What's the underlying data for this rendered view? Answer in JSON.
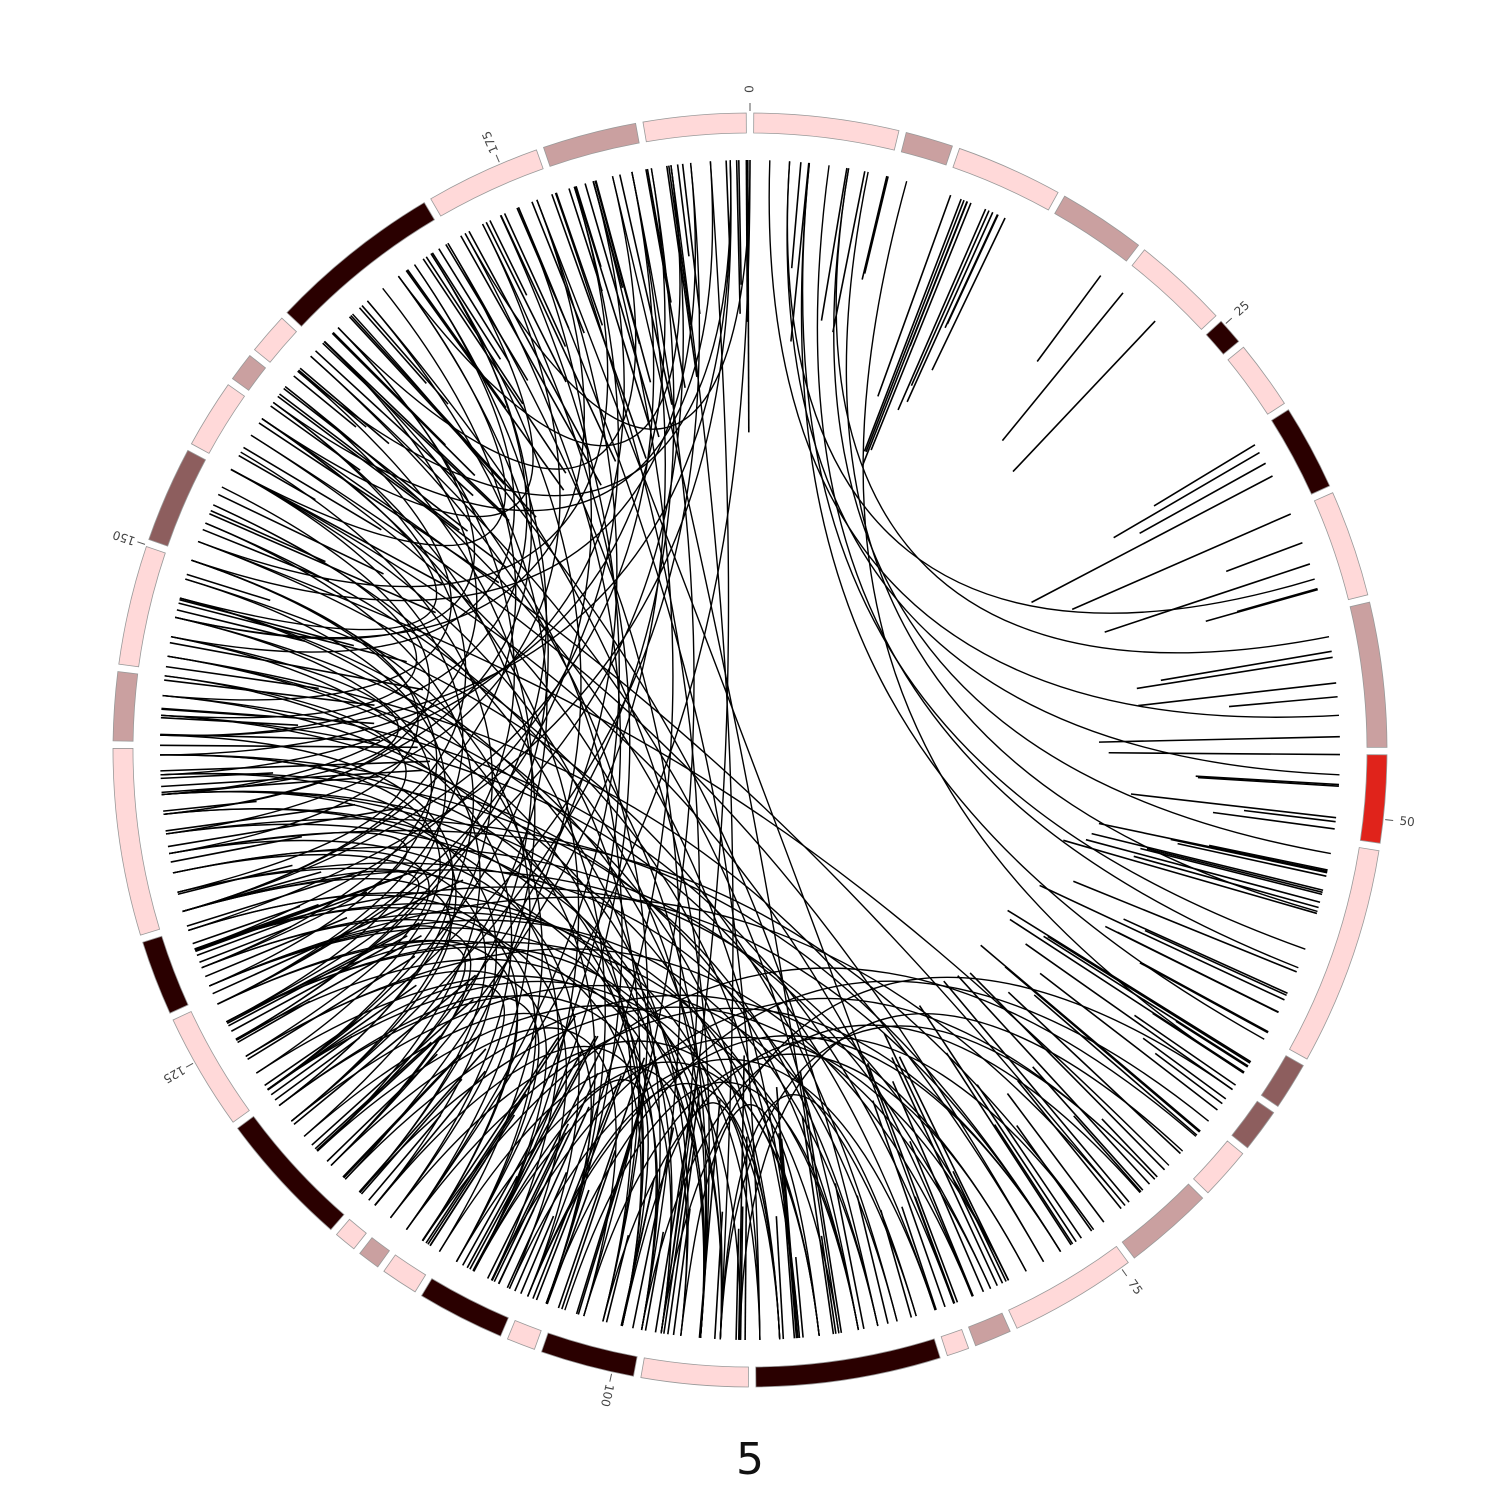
{
  "figure": {
    "caption": "5"
  },
  "axis": {
    "tick_labels": [
      "0",
      "25",
      "50",
      "75",
      "100",
      "125",
      "150",
      "175"
    ]
  },
  "ideogram": {
    "length": 187,
    "border_color": "#999999",
    "bands": [
      {
        "start": 0,
        "end": 7.2,
        "color": "#ffd9d9"
      },
      {
        "start": 7.2,
        "end": 9.8,
        "color": "#caa0a0"
      },
      {
        "start": 9.8,
        "end": 15.2,
        "color": "#ffd9d9"
      },
      {
        "start": 15.2,
        "end": 19.7,
        "color": "#caa0a0"
      },
      {
        "start": 19.7,
        "end": 24.6,
        "color": "#ffd9d9"
      },
      {
        "start": 24.6,
        "end": 26.2,
        "color": "#2a0000"
      },
      {
        "start": 26.2,
        "end": 29.8,
        "color": "#ffd9d9"
      },
      {
        "start": 29.8,
        "end": 34.2,
        "color": "#2a0000"
      },
      {
        "start": 34.2,
        "end": 39.6,
        "color": "#ffd9d9"
      },
      {
        "start": 39.6,
        "end": 46.8,
        "color": "#caa0a0"
      },
      {
        "start": 46.8,
        "end": 51.3,
        "color": "#e0231b"
      },
      {
        "start": 51.3,
        "end": 62.0,
        "color": "#ffd9d9"
      },
      {
        "start": 62.0,
        "end": 64.6,
        "color": "#8d5e5e"
      },
      {
        "start": 64.6,
        "end": 67.0,
        "color": "#8d5e5e"
      },
      {
        "start": 67.0,
        "end": 69.8,
        "color": "#ffd9d9"
      },
      {
        "start": 69.8,
        "end": 74.4,
        "color": "#caa0a0"
      },
      {
        "start": 74.4,
        "end": 80.8,
        "color": "#ffd9d9"
      },
      {
        "start": 80.8,
        "end": 82.9,
        "color": "#caa0a0"
      },
      {
        "start": 82.9,
        "end": 84.3,
        "color": "#ffd9d9"
      },
      {
        "start": 84.3,
        "end": 93.4,
        "color": "#2a0000"
      },
      {
        "start": 93.4,
        "end": 98.8,
        "color": "#ffd9d9"
      },
      {
        "start": 98.8,
        "end": 103.6,
        "color": "#2a0000"
      },
      {
        "start": 103.6,
        "end": 105.3,
        "color": "#ffd9d9"
      },
      {
        "start": 105.3,
        "end": 109.8,
        "color": "#2a0000"
      },
      {
        "start": 109.8,
        "end": 111.9,
        "color": "#ffd9d9"
      },
      {
        "start": 111.9,
        "end": 113.3,
        "color": "#caa0a0"
      },
      {
        "start": 113.3,
        "end": 114.7,
        "color": "#ffd9d9"
      },
      {
        "start": 114.7,
        "end": 121.5,
        "color": "#2a0000"
      },
      {
        "start": 121.5,
        "end": 127.4,
        "color": "#ffd9d9"
      },
      {
        "start": 127.4,
        "end": 131.3,
        "color": "#2a0000"
      },
      {
        "start": 131.3,
        "end": 140.5,
        "color": "#ffd9d9"
      },
      {
        "start": 140.5,
        "end": 144.1,
        "color": "#caa0a0"
      },
      {
        "start": 144.1,
        "end": 150.1,
        "color": "#ffd9d9"
      },
      {
        "start": 150.1,
        "end": 155.0,
        "color": "#8d5e5e"
      },
      {
        "start": 155.0,
        "end": 158.6,
        "color": "#ffd9d9"
      },
      {
        "start": 158.6,
        "end": 160.3,
        "color": "#caa0a0"
      },
      {
        "start": 160.3,
        "end": 162.6,
        "color": "#ffd9d9"
      },
      {
        "start": 162.6,
        "end": 171.2,
        "color": "#2a0000"
      },
      {
        "start": 171.2,
        "end": 177.0,
        "color": "#ffd9d9"
      },
      {
        "start": 177.0,
        "end": 181.8,
        "color": "#caa0a0"
      },
      {
        "start": 181.8,
        "end": 187.0,
        "color": "#ffd9d9"
      }
    ]
  },
  "links": {
    "color": "#000000",
    "pairs": [
      [
        176,
        118
      ],
      [
        130,
        93
      ],
      [
        95,
        71
      ],
      [
        148,
        110
      ],
      [
        145,
        78
      ],
      [
        182,
        120
      ],
      [
        126,
        94
      ],
      [
        101,
        75
      ],
      [
        159,
        115
      ],
      [
        104,
        67
      ],
      [
        131,
        95
      ],
      [
        172,
        109
      ],
      [
        138,
        92
      ],
      [
        142,
        84
      ],
      [
        135,
        105
      ],
      [
        169,
        125
      ],
      [
        98,
        65
      ],
      [
        151,
        91
      ],
      [
        128,
        87
      ],
      [
        158,
        73
      ],
      [
        133,
        99
      ],
      [
        179,
        105
      ],
      [
        150,
        112
      ],
      [
        112,
        77
      ],
      [
        183,
        95
      ],
      [
        167,
        132
      ],
      [
        139,
        120
      ],
      [
        106,
        84
      ],
      [
        162,
        101
      ],
      [
        155,
        82
      ],
      [
        125,
        97
      ],
      [
        186,
        131
      ],
      [
        135,
        75
      ],
      [
        108,
        80
      ],
      [
        147,
        95
      ],
      [
        165,
        87
      ],
      [
        131,
        111
      ],
      [
        177,
        98
      ],
      [
        140,
        100
      ],
      [
        120,
        85
      ],
      [
        156,
        121
      ],
      [
        180,
        89
      ],
      [
        137,
        107
      ],
      [
        94,
        69
      ],
      [
        170,
        116
      ],
      [
        145,
        92
      ],
      [
        129,
        90
      ],
      [
        187,
        112
      ],
      [
        136,
        96
      ],
      [
        153,
        104
      ],
      [
        99,
        72
      ],
      [
        164,
        125
      ],
      [
        144,
        113
      ],
      [
        115,
        81
      ],
      [
        182,
        140
      ],
      [
        127,
        100
      ],
      [
        133,
        86
      ],
      [
        170,
        141
      ],
      [
        157,
        78
      ],
      [
        122,
        92
      ],
      [
        141,
        121
      ],
      [
        184,
        122
      ],
      [
        109,
        90
      ],
      [
        173,
        136
      ],
      [
        152,
        96
      ],
      [
        130,
        109
      ],
      [
        160,
        143
      ],
      [
        134,
        81
      ],
      [
        102,
        79
      ],
      [
        178,
        151
      ],
      [
        146,
        118
      ],
      [
        121,
        98
      ],
      [
        163,
        104
      ],
      [
        138,
        114
      ],
      [
        176,
        83
      ],
      [
        124,
        82
      ],
      [
        149,
        126
      ],
      [
        181,
        132
      ],
      [
        107,
        71
      ],
      [
        154,
        137
      ],
      [
        95,
        85
      ],
      [
        174,
        112
      ],
      [
        148,
        99
      ],
      [
        132,
        120
      ],
      [
        185,
        159
      ],
      [
        128,
        73
      ],
      [
        166,
        96
      ],
      [
        113,
        90
      ],
      [
        143,
        104
      ],
      [
        158,
        148
      ],
      [
        129,
        106
      ],
      [
        181,
        102
      ],
      [
        118,
        88
      ],
      [
        161,
        117
      ],
      [
        136,
        77
      ],
      [
        175,
        127
      ],
      [
        111,
        68
      ],
      [
        150,
        135
      ],
      [
        184,
        150
      ],
      [
        126,
        89
      ],
      [
        97,
        90
      ],
      [
        168,
        155
      ],
      [
        139,
        87
      ],
      [
        123,
        95
      ],
      [
        171,
        99
      ],
      [
        147,
        128
      ],
      [
        157,
        96
      ],
      [
        180,
        164
      ],
      [
        134,
        115
      ],
      [
        116,
        79
      ],
      [
        163,
        138
      ],
      [
        105,
        92
      ],
      [
        186,
        141
      ],
      [
        142,
        97
      ],
      [
        152,
        122
      ],
      [
        132,
        80
      ],
      [
        178,
        130
      ],
      [
        119,
        104
      ],
      [
        160,
        91
      ],
      [
        144,
        133
      ],
      [
        187,
        172
      ],
      [
        127,
        111
      ],
      [
        173,
        108
      ],
      [
        103,
        88
      ],
      [
        155,
        127
      ],
      [
        137,
        100
      ],
      [
        169,
        146
      ],
      [
        151,
        70
      ],
      [
        183,
        127
      ],
      [
        140,
        123
      ],
      [
        110,
        96
      ],
      [
        166,
        119
      ],
      [
        130,
        77
      ],
      [
        176,
        147
      ],
      [
        145,
        101
      ],
      [
        121,
        109
      ],
      [
        159,
        132
      ],
      [
        114,
        99
      ],
      [
        185,
        98
      ],
      [
        149,
        86
      ],
      [
        135,
        129
      ],
      [
        171,
        158
      ],
      [
        128,
        117
      ],
      [
        162,
        88
      ],
      [
        100,
        93
      ],
      [
        153,
        142
      ],
      [
        181,
        117
      ],
      [
        124,
        108
      ],
      [
        168,
        122
      ],
      [
        138,
        98
      ],
      [
        117,
        102
      ],
      [
        155,
        101
      ],
      [
        186,
        161
      ],
      [
        132,
        126
      ],
      [
        146,
        138
      ],
      [
        175,
        93
      ],
      [
        126,
        118
      ],
      [
        164,
        147
      ],
      [
        108,
        100
      ],
      [
        140,
        88
      ],
      [
        179,
        139
      ],
      [
        134,
        124
      ],
      [
        158,
        108
      ],
      [
        122,
        113
      ],
      [
        183,
        168
      ],
      [
        150,
        129
      ],
      [
        105,
        77
      ],
      [
        170,
        137
      ],
      [
        143,
        83
      ],
      [
        128,
        96
      ],
      [
        62,
        3
      ],
      [
        48,
        2
      ],
      [
        45,
        1
      ],
      [
        58,
        4
      ],
      [
        41,
        5
      ],
      [
        55,
        6
      ],
      [
        38,
        2
      ],
      [
        52,
        5
      ],
      [
        64,
        8
      ],
      [
        57,
        3
      ]
    ]
  },
  "radial_marks": {
    "color": "#000000",
    "sectors": [
      {
        "from": 0,
        "to": 20.4,
        "density": 1.0
      },
      {
        "from": 20.4,
        "to": 46.8,
        "density": 0.55
      },
      {
        "from": 46.8,
        "to": 187,
        "density": 1.6
      }
    ]
  }
}
